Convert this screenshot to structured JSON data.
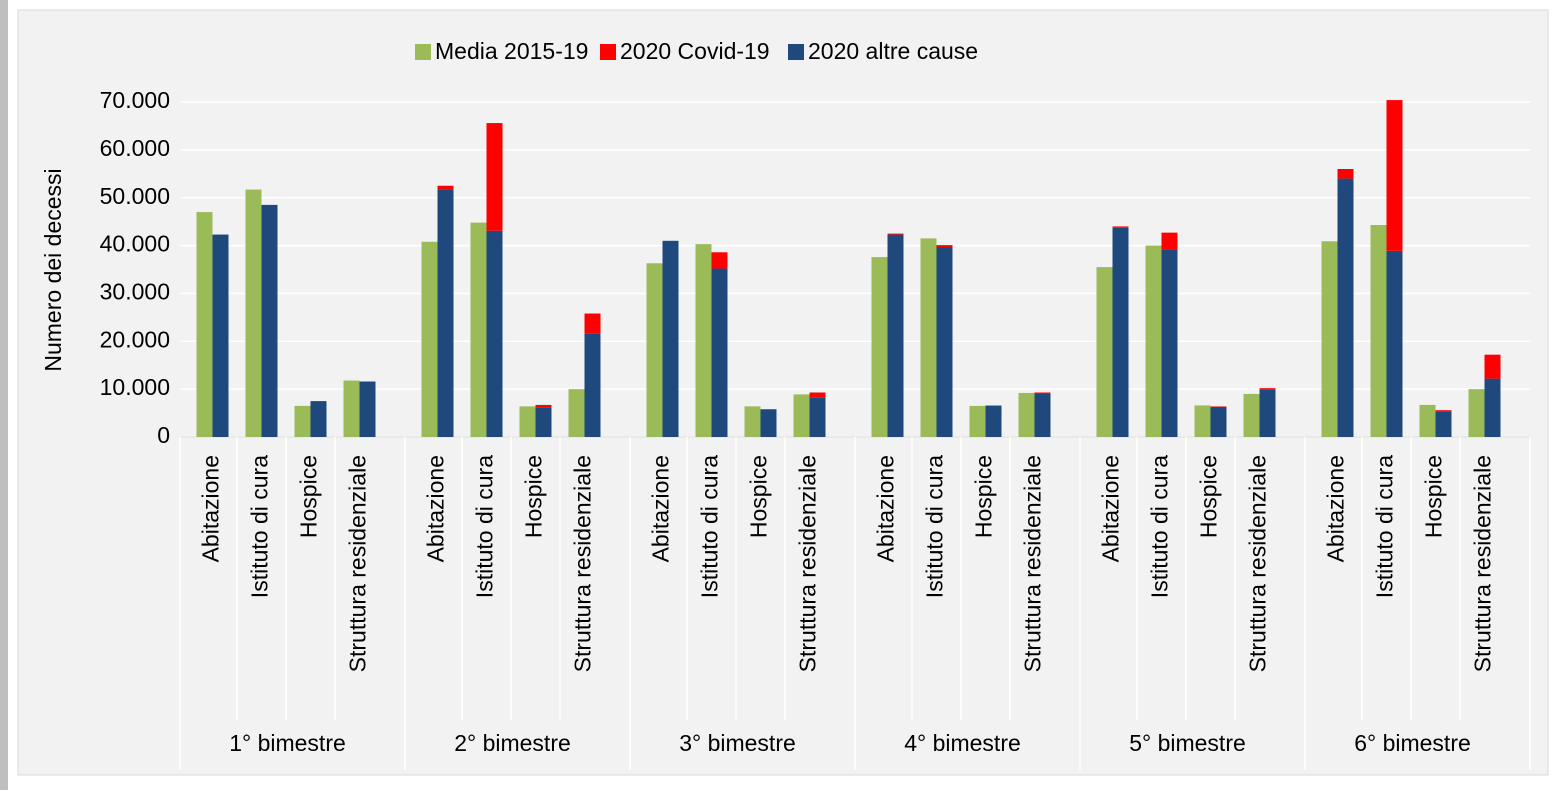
{
  "chart_data": {
    "type": "bar",
    "y_label": "Numero dei decessi",
    "groups": [
      "1° bimestre",
      "2° bimestre",
      "3° bimestre",
      "4° bimestre",
      "5° bimestre",
      "6° bimestre"
    ],
    "categories": [
      "Abitazione",
      "Istituto di cura",
      "Hospice",
      "Struttura residenziale",
      "Abitazione",
      "Istituto di cura",
      "Hospice",
      "Struttura residenziale",
      "Abitazione",
      "Istituto di cura",
      "Hospice",
      "Struttura residenziale",
      "Abitazione",
      "Istituto di cura",
      "Hospice",
      "Struttura residenziale",
      "Abitazione",
      "Istituto di cura",
      "Hospice",
      "Struttura residenziale",
      "Abitazione",
      "Istituto di cura",
      "Hospice",
      "Struttura residenziale"
    ],
    "series": [
      {
        "name": "Media 2015-19",
        "color": "#9bbb59",
        "stack": "a",
        "values": [
          47000,
          51700,
          6500,
          11800,
          40800,
          44800,
          6400,
          10000,
          36300,
          40300,
          6400,
          8900,
          37600,
          41500,
          6500,
          9200,
          35500,
          40000,
          6600,
          9000,
          40900,
          44300,
          6700,
          10000
        ]
      },
      {
        "name": "2020 Covid-19",
        "color": "#ff0000",
        "stack": "b",
        "values": [
          0,
          0,
          0,
          0,
          800,
          22500,
          500,
          4200,
          0,
          3400,
          0,
          1000,
          200,
          400,
          100,
          200,
          300,
          3500,
          100,
          300,
          2000,
          31500,
          200,
          5000
        ]
      },
      {
        "name": "2020 altre cause",
        "color": "#1f497d",
        "stack": "b",
        "values": [
          42300,
          48500,
          7500,
          11600,
          51700,
          43100,
          6200,
          21600,
          41000,
          35200,
          5800,
          8300,
          42300,
          39700,
          6500,
          9100,
          43700,
          39200,
          6300,
          9900,
          54000,
          38900,
          5400,
          12200
        ]
      }
    ],
    "ylim": [
      0,
      70000
    ],
    "yticks": [
      0,
      {
        "value": 10000,
        "label": "10.000"
      },
      {
        "value": 20000,
        "label": "20.000"
      },
      {
        "value": 30000,
        "label": "30.000"
      },
      {
        "value": 40000,
        "label": "40.000"
      },
      {
        "value": 50000,
        "label": "50.000"
      },
      {
        "value": 60000,
        "label": "60.000"
      },
      {
        "value": 70000,
        "label": "70.000"
      }
    ],
    "grid": true
  }
}
